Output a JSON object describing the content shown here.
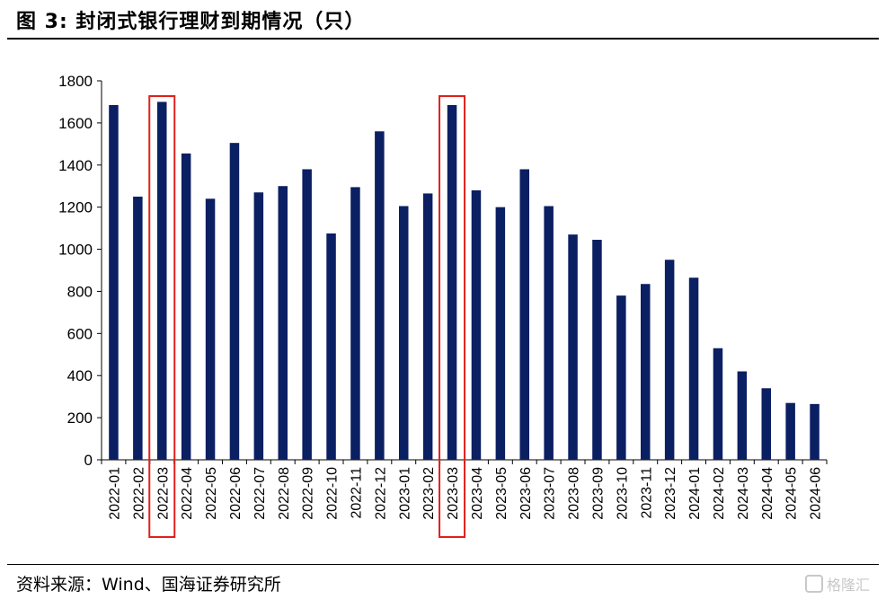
{
  "title": "图 3:  封闭式银行理财到期情况（只）",
  "source": "资料来源：Wind、国海证券研究所",
  "watermark": "格隆汇",
  "chart_data": {
    "type": "bar",
    "title": "图 3:  封闭式银行理财到期情况（只）",
    "xlabel": "",
    "ylabel": "",
    "ylim": [
      0,
      1800
    ],
    "yticks": [
      0,
      200,
      400,
      600,
      800,
      1000,
      1200,
      1400,
      1600,
      1800
    ],
    "grid": false,
    "legend": "none",
    "bar_color": "#0b1f63",
    "highlight_color": "#e0201b",
    "highlighted_categories": [
      "2022-03",
      "2023-03"
    ],
    "categories": [
      "2022-01",
      "2022-02",
      "2022-03",
      "2022-04",
      "2022-05",
      "2022-06",
      "2022-07",
      "2022-08",
      "2022-09",
      "2022-10",
      "2022-11",
      "2022-12",
      "2023-01",
      "2023-02",
      "2023-03",
      "2023-04",
      "2023-05",
      "2023-06",
      "2023-07",
      "2023-08",
      "2023-09",
      "2023-10",
      "2023-11",
      "2023-12",
      "2024-01",
      "2024-02",
      "2024-03",
      "2024-04",
      "2024-05",
      "2024-06"
    ],
    "values": [
      1685,
      1250,
      1700,
      1455,
      1240,
      1505,
      1270,
      1300,
      1380,
      1075,
      1295,
      1560,
      1205,
      1265,
      1685,
      1280,
      1200,
      1380,
      1205,
      1070,
      1045,
      780,
      835,
      950,
      865,
      530,
      420,
      340,
      270,
      265
    ]
  }
}
